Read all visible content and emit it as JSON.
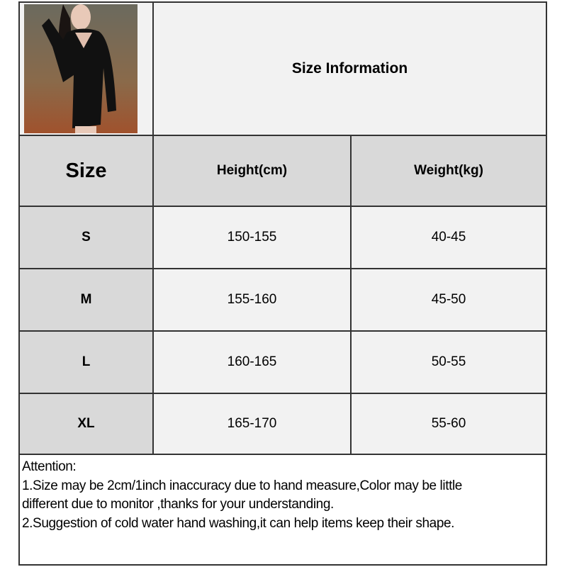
{
  "title": "Size Information",
  "product_image": {
    "icon": "product-photo-black-dress"
  },
  "table": {
    "headers": [
      "Size",
      "Height(cm)",
      "Weight(kg)"
    ],
    "rows": [
      {
        "size": "S",
        "height": "150-155",
        "weight": "40-45"
      },
      {
        "size": "M",
        "height": "155-160",
        "weight": "45-50"
      },
      {
        "size": "L",
        "height": "160-165",
        "weight": "50-55"
      },
      {
        "size": "XL",
        "height": "165-170",
        "weight": "55-60"
      }
    ]
  },
  "notes": {
    "heading": "Attention:",
    "line1a": "1.Size may be 2cm/1inch inaccuracy due to hand measure,Color may be little",
    "line1b": "different due to monitor ,thanks for your understanding.",
    "line2": "2.Suggestion of cold water hand washing,it can help items keep their shape."
  },
  "colors": {
    "header_gray": "#d9d9d9",
    "cell_light": "#f2f2f2",
    "border": "#333333"
  }
}
